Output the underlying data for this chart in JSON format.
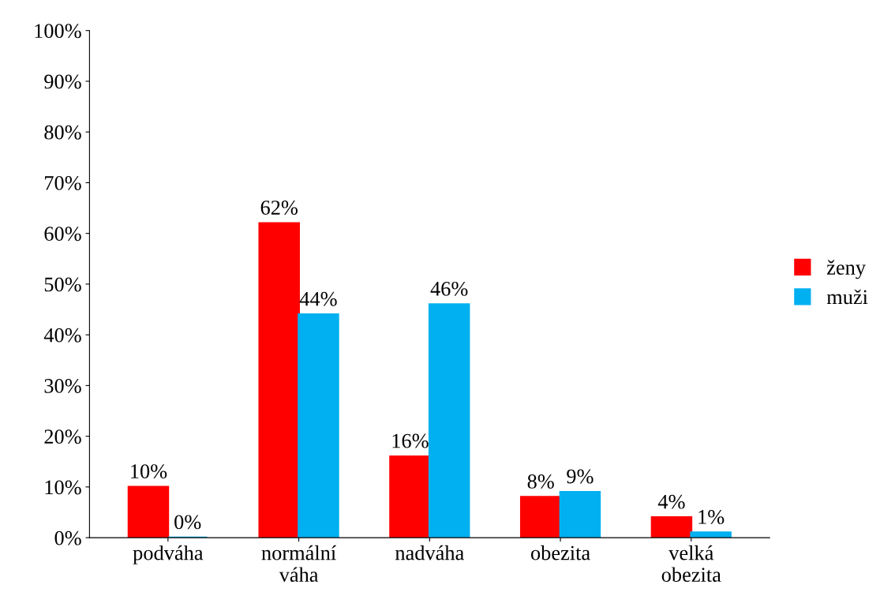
{
  "chart_data": {
    "type": "bar",
    "categories": [
      "podváha",
      "normální\nváha",
      "nadváha",
      "obezita",
      "velká\nobezita"
    ],
    "series": [
      {
        "name": "ženy",
        "color": "#ff0000",
        "values": [
          10,
          62,
          16,
          8,
          4
        ],
        "value_labels": [
          "10%",
          "62%",
          "16%",
          "8%",
          "4%"
        ]
      },
      {
        "name": "muži",
        "color": "#00b0f0",
        "values": [
          0,
          44,
          46,
          9,
          1
        ],
        "value_labels": [
          "0%",
          "44%",
          "46%",
          "9%",
          "1%"
        ]
      }
    ],
    "ylim": [
      0,
      100
    ],
    "yticks": [
      {
        "value": 0,
        "label": "0%"
      },
      {
        "value": 10,
        "label": "10%"
      },
      {
        "value": 20,
        "label": "20%"
      },
      {
        "value": 30,
        "label": "30%"
      },
      {
        "value": 40,
        "label": "40%"
      },
      {
        "value": 50,
        "label": "50%"
      },
      {
        "value": 60,
        "label": "60%"
      },
      {
        "value": 70,
        "label": "70%"
      },
      {
        "value": 80,
        "label": "80%"
      },
      {
        "value": 90,
        "label": "90%"
      },
      {
        "value": 100,
        "label": "100%"
      }
    ],
    "grid": false,
    "legend": "right"
  }
}
